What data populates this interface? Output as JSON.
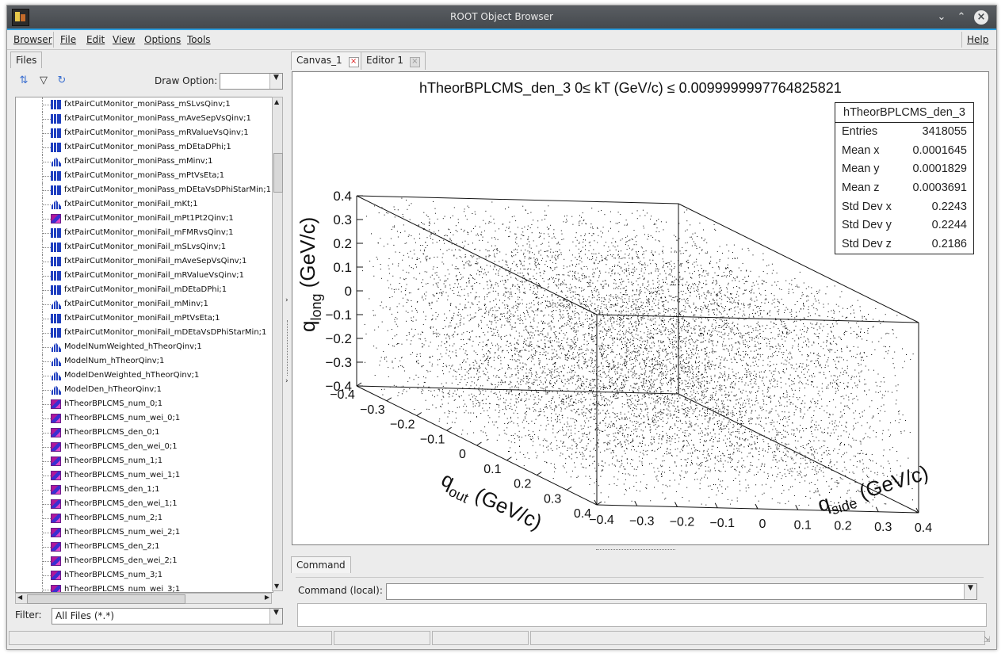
{
  "window": {
    "title": "ROOT Object Browser"
  },
  "menubar": {
    "browser": "Browser",
    "file": "File",
    "edit": "Edit",
    "view": "View",
    "options": "Options",
    "tools": "Tools",
    "help": "Help"
  },
  "left": {
    "tab": "Files",
    "draw_option_label": "Draw Option:",
    "draw_option_value": "",
    "filter_label": "Filter:",
    "filter_value": "All Files (*.*)",
    "tree": [
      {
        "label": "fxtPairCutMonitor_moniPass_mSLvsQinv;1",
        "icon": "h2"
      },
      {
        "label": "fxtPairCutMonitor_moniPass_mAveSepVsQinv;1",
        "icon": "h2"
      },
      {
        "label": "fxtPairCutMonitor_moniPass_mRValueVsQinv;1",
        "icon": "h2"
      },
      {
        "label": "fxtPairCutMonitor_moniPass_mDEtaDPhi;1",
        "icon": "h2"
      },
      {
        "label": "fxtPairCutMonitor_moniPass_mMinv;1",
        "icon": "h1"
      },
      {
        "label": "fxtPairCutMonitor_moniPass_mPtVsEta;1",
        "icon": "h2"
      },
      {
        "label": "fxtPairCutMonitor_moniPass_mDEtaVsDPhiStarMin;1",
        "icon": "h2"
      },
      {
        "label": "fxtPairCutMonitor_moniFail_mKt;1",
        "icon": "h1"
      },
      {
        "label": "fxtPairCutMonitor_moniFail_mPt1Pt2Qinv;1",
        "icon": "h3"
      },
      {
        "label": "fxtPairCutMonitor_moniFail_mFMRvsQinv;1",
        "icon": "h2"
      },
      {
        "label": "fxtPairCutMonitor_moniFail_mSLvsQinv;1",
        "icon": "h2"
      },
      {
        "label": "fxtPairCutMonitor_moniFail_mAveSepVsQinv;1",
        "icon": "h2"
      },
      {
        "label": "fxtPairCutMonitor_moniFail_mRValueVsQinv;1",
        "icon": "h2"
      },
      {
        "label": "fxtPairCutMonitor_moniFail_mDEtaDPhi;1",
        "icon": "h2"
      },
      {
        "label": "fxtPairCutMonitor_moniFail_mMinv;1",
        "icon": "h1"
      },
      {
        "label": "fxtPairCutMonitor_moniFail_mPtVsEta;1",
        "icon": "h2"
      },
      {
        "label": "fxtPairCutMonitor_moniFail_mDEtaVsDPhiStarMin;1",
        "icon": "h2"
      },
      {
        "label": "ModelNumWeighted_hTheorQinv;1",
        "icon": "h1"
      },
      {
        "label": "ModelNum_hTheorQinv;1",
        "icon": "h1"
      },
      {
        "label": "ModelDenWeighted_hTheorQinv;1",
        "icon": "h1"
      },
      {
        "label": "ModelDen_hTheorQinv;1",
        "icon": "h1"
      },
      {
        "label": "hTheorBPLCMS_num_0;1",
        "icon": "h3"
      },
      {
        "label": "hTheorBPLCMS_num_wei_0;1",
        "icon": "h3"
      },
      {
        "label": "hTheorBPLCMS_den_0;1",
        "icon": "h3"
      },
      {
        "label": "hTheorBPLCMS_den_wei_0;1",
        "icon": "h3"
      },
      {
        "label": "hTheorBPLCMS_num_1;1",
        "icon": "h3"
      },
      {
        "label": "hTheorBPLCMS_num_wei_1;1",
        "icon": "h3"
      },
      {
        "label": "hTheorBPLCMS_den_1;1",
        "icon": "h3"
      },
      {
        "label": "hTheorBPLCMS_den_wei_1;1",
        "icon": "h3"
      },
      {
        "label": "hTheorBPLCMS_num_2;1",
        "icon": "h3"
      },
      {
        "label": "hTheorBPLCMS_num_wei_2;1",
        "icon": "h3"
      },
      {
        "label": "hTheorBPLCMS_den_2;1",
        "icon": "h3"
      },
      {
        "label": "hTheorBPLCMS_den_wei_2;1",
        "icon": "h3"
      },
      {
        "label": "hTheorBPLCMS_num_3;1",
        "icon": "h3"
      },
      {
        "label": "hTheorBPLCMS_num_wei_3;1",
        "icon": "h3"
      }
    ]
  },
  "right": {
    "tabs": [
      {
        "label": "Canvas_1"
      },
      {
        "label": "Editor 1"
      }
    ],
    "command_tab": "Command",
    "command_label": "Command (local):",
    "command_value": ""
  },
  "chart_data": {
    "type": "scatter",
    "title": "hTheorBPLCMS_den_3 0≤ kT (GeV/c) ≤ 0.0099999997764825821",
    "xlabel": "q_out (GeV/c)",
    "ylabel": "q_side (GeV/c)",
    "zlabel": "q_long (GeV/c)",
    "xlim": [
      -0.4,
      0.4
    ],
    "ylim": [
      -0.4,
      0.4
    ],
    "zlim": [
      -0.4,
      0.4
    ],
    "x_ticks": [
      "−0.4",
      "−0.3",
      "−0.2",
      "−0.1",
      "0",
      "0.1",
      "0.2",
      "0.3",
      "0.4"
    ],
    "y_ticks": [
      "−0.4",
      "−0.3",
      "−0.2",
      "−0.1",
      "0",
      "0.1",
      "0.2",
      "0.3",
      "0.4"
    ],
    "z_ticks": [
      "−0.4",
      "−0.3",
      "−0.2",
      "−0.1",
      "0",
      "0.1",
      "0.2",
      "0.3",
      "0.4"
    ],
    "stats": {
      "name": "hTheorBPLCMS_den_3",
      "rows": [
        {
          "k": "Entries",
          "v": "3418055"
        },
        {
          "k": "Mean x",
          "v": "0.0001645"
        },
        {
          "k": "Mean y",
          "v": "0.0001829"
        },
        {
          "k": "Mean z",
          "v": "0.0003691"
        },
        {
          "k": "Std Dev x",
          "v": "0.2243"
        },
        {
          "k": "Std Dev y",
          "v": "0.2244"
        },
        {
          "k": "Std Dev z",
          "v": "0.2186"
        }
      ]
    }
  }
}
